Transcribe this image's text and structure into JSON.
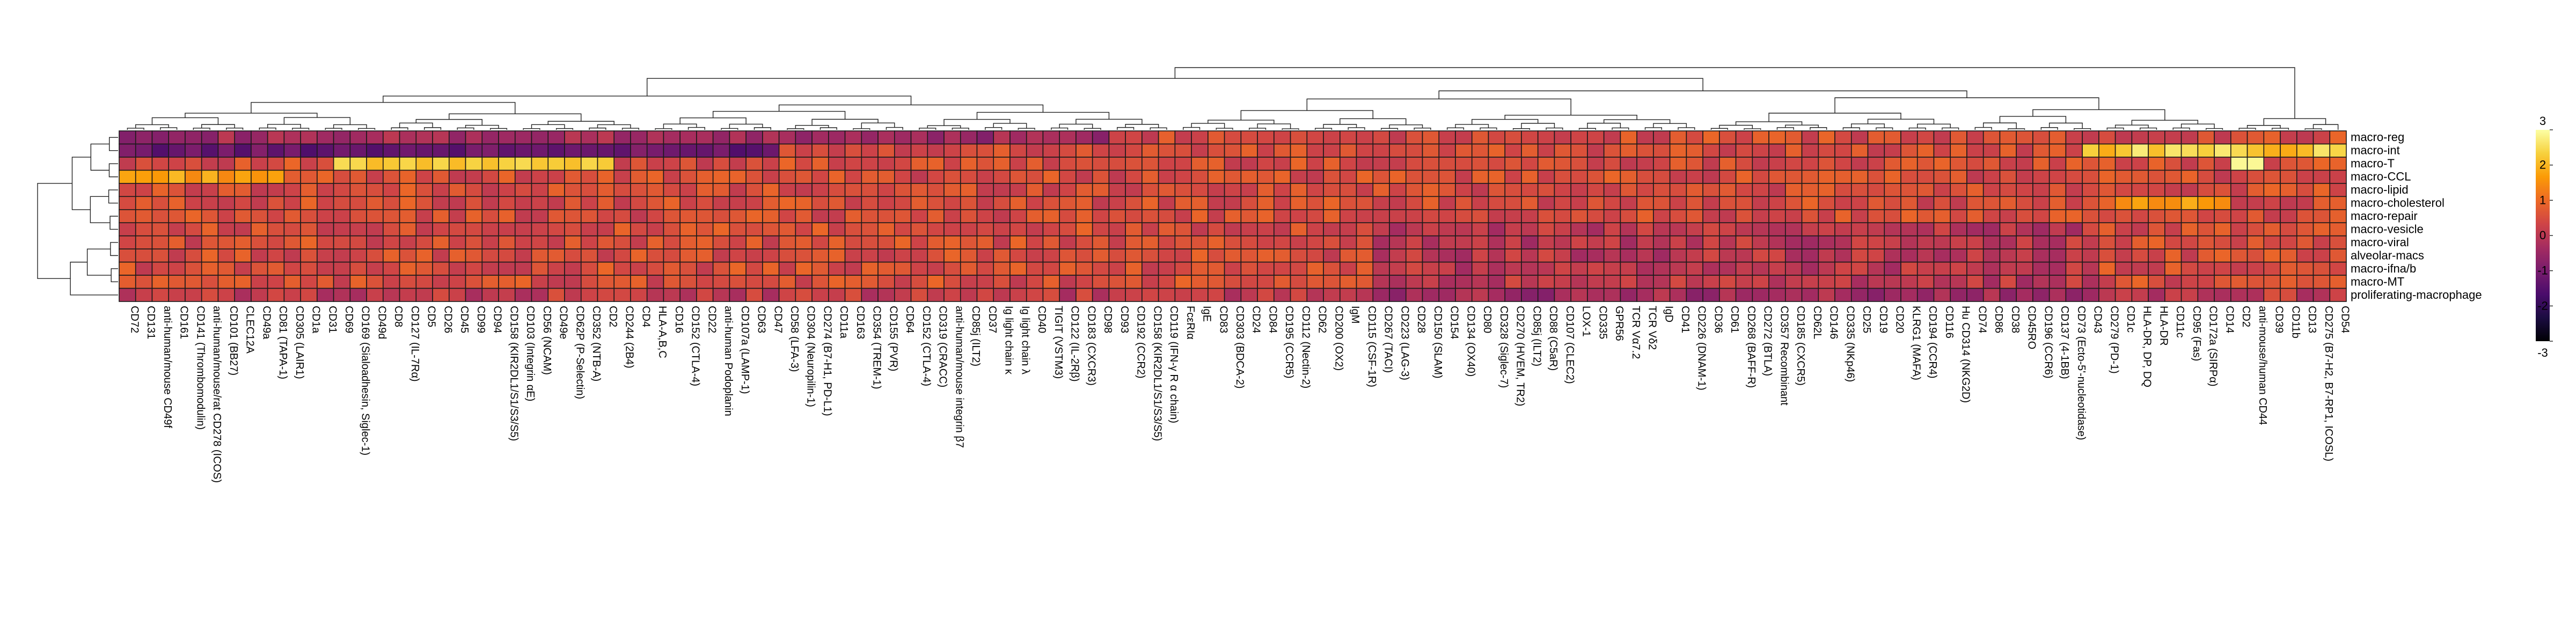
{
  "chart_data": {
    "type": "heatmap",
    "title": "",
    "xlabel": "",
    "ylabel": "",
    "clustered": true,
    "grid": true,
    "legend_position": "right",
    "rows": [
      "macro-reg",
      "macro-int",
      "macro-T",
      "macro-CCL",
      "macro-lipid",
      "macro-cholesterol",
      "macro-repair",
      "macro-vesicle",
      "macro-viral",
      "alveolar-macs",
      "macro-ifna/b",
      "macro-MT",
      "proliferating-macrophage"
    ],
    "columns": [
      "CD72",
      "CD131",
      "anti-human/mouse CD49f",
      "CD161",
      "CD141 (Thrombomodulin)",
      "anti-human/mouse/rat CD278 (ICOS)",
      "CD101 (BB27)",
      "CLEC12A",
      "CD49a",
      "CD81 (TAPA-1)",
      "CD305 (LAIR1)",
      "CD1a",
      "CD31",
      "CD69",
      "CD169 (Sialoadhesin, Siglec-1)",
      "CD49d",
      "CD8",
      "CD127 (IL-7Rα)",
      "CD5",
      "CD26",
      "CD45",
      "CD99",
      "CD94",
      "CD158 (KIR2DL1/S1/S3/S5)",
      "CD103 (Integrin αE)",
      "CD56 (NCAM)",
      "CD49e",
      "CD62P (P-Selectin)",
      "CD352 (NTB-A)",
      "CD2",
      "CD244 (2B4)",
      "CD4",
      "HLA-A,B,C",
      "CD16",
      "CD152 (CTLA-4)",
      "CD22",
      "anti-human Podoplanin",
      "CD107a (LAMP-1)",
      "CD63",
      "CD47",
      "CD58 (LFA-3)",
      "CD304 (Neuropilin-1)",
      "CD274 (B7-H1, PD-L1)",
      "CD11a",
      "CD163",
      "CD354 (TREM-1)",
      "CD155 (PVR)",
      "CD64",
      "CD152 (CTLA-4)",
      "CD319 (CRACC)",
      "anti-human/mouse integrin β7",
      "CD85j (ILT2)",
      "CD37",
      "Ig light chain κ",
      "Ig light chain λ",
      "CD40",
      "TIGIT (VSTM3)",
      "CD122 (IL-2Rβ)",
      "CD183 (CXCR3)",
      "CD98",
      "CD93",
      "CD192 (CCR2)",
      "CD158 (KIR2DL1/S1/S3/S5)",
      "CD119 (IFN-γ R α chain)",
      "FcεRIα",
      "IgE",
      "CD83",
      "CD303 (BDCA-2)",
      "CD24",
      "CD84",
      "CD195 (CCR5)",
      "CD112 (Nectin-2)",
      "CD62",
      "CD200 (OX2)",
      "IgM",
      "CD115 (CSF-1R)",
      "CD267 (TACI)",
      "CD223 (LAG-3)",
      "CD28",
      "CD150 (SLAM)",
      "CD154",
      "CD134 (OX40)",
      "CD80",
      "CD328 (Siglec-7)",
      "CD270 (HVEM, TR2)",
      "CD85j (ILT2)",
      "CD88 (C5aR)",
      "CD107 (CLEC2)",
      "LOX-1",
      "CD335",
      "GPR56",
      "TCR Vα7.2",
      "TCR Vδ2",
      "IgD",
      "CD41",
      "CD226 (DNAM-1)",
      "CD36",
      "CD61",
      "CD268 (BAFF-R)",
      "CD272 (BTLA)",
      "CD357 Recombinant",
      "CD185 (CXCR5)",
      "CD62L",
      "CD146",
      "CD335 (NKp46)",
      "CD25",
      "CD19",
      "CD20",
      "KLRG1 (MAFA)",
      "CD194 (CCR4)",
      "CD116",
      "Hu CD314 (NKG2D)",
      "CD74",
      "CD86",
      "CD38",
      "CD45RO",
      "CD196 (CCR6)",
      "CD137 (4-1BB)",
      "CD73 (Ecto-5'-nucleotidase)",
      "CD43",
      "CD279 (PD-1)",
      "CD1c",
      "HLA-DR, DP, DQ",
      "HLA-DR",
      "CD11c",
      "CD95 (Fas)",
      "CD172a (SIRPα)",
      "CD14",
      "CD2",
      "anti-mouse/human CD44",
      "CD39",
      "CD11b",
      "CD13",
      "CD275 (B7-H2, B7-RP1, ICOSL)",
      "CD54"
    ],
    "value_range": [
      -3,
      3
    ],
    "colorbar_ticks": [
      3,
      2,
      1,
      0,
      -1,
      -2,
      -3
    ],
    "colormap": [
      "#000004",
      "#1b0c41",
      "#4a0c6b",
      "#781c6d",
      "#a52c60",
      "#cf4446",
      "#ed6925",
      "#fb9b06",
      "#f7d13d",
      "#fcffa4"
    ],
    "values": []
  }
}
